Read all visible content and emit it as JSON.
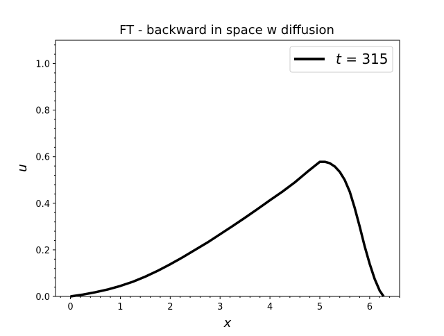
{
  "chart_data": {
    "type": "line",
    "title": "FT - backward in space w diffusion",
    "xlabel": "x",
    "ylabel": "u",
    "xlim": [
      -0.3,
      6.6
    ],
    "ylim": [
      0.0,
      1.1
    ],
    "xticks": [
      0,
      1,
      2,
      3,
      4,
      5,
      6
    ],
    "xtick_labels": [
      "0",
      "1",
      "2",
      "3",
      "4",
      "5",
      "6"
    ],
    "yticks": [
      0.0,
      0.2,
      0.4,
      0.6,
      0.8,
      1.0
    ],
    "ytick_labels": [
      "0.0",
      "0.2",
      "0.4",
      "0.6",
      "0.8",
      "1.0"
    ],
    "grid": false,
    "legend": {
      "placement": "top-right",
      "label_prefix": "t",
      "label_value": "315"
    },
    "series": [
      {
        "name": "t = 315",
        "color": "#000000",
        "x": [
          0.0,
          0.25,
          0.5,
          0.75,
          1.0,
          1.25,
          1.5,
          1.75,
          2.0,
          2.25,
          2.5,
          2.75,
          3.0,
          3.25,
          3.5,
          3.75,
          4.0,
          4.25,
          4.5,
          4.75,
          5.0,
          5.1,
          5.2,
          5.3,
          5.4,
          5.5,
          5.6,
          5.7,
          5.8,
          5.9,
          6.0,
          6.1,
          6.2,
          6.28
        ],
        "y": [
          0.0,
          0.008,
          0.018,
          0.03,
          0.045,
          0.063,
          0.085,
          0.11,
          0.138,
          0.168,
          0.2,
          0.232,
          0.267,
          0.302,
          0.338,
          0.375,
          0.413,
          0.45,
          0.49,
          0.535,
          0.578,
          0.578,
          0.572,
          0.558,
          0.535,
          0.5,
          0.45,
          0.38,
          0.3,
          0.215,
          0.14,
          0.075,
          0.025,
          0.0
        ]
      }
    ]
  }
}
